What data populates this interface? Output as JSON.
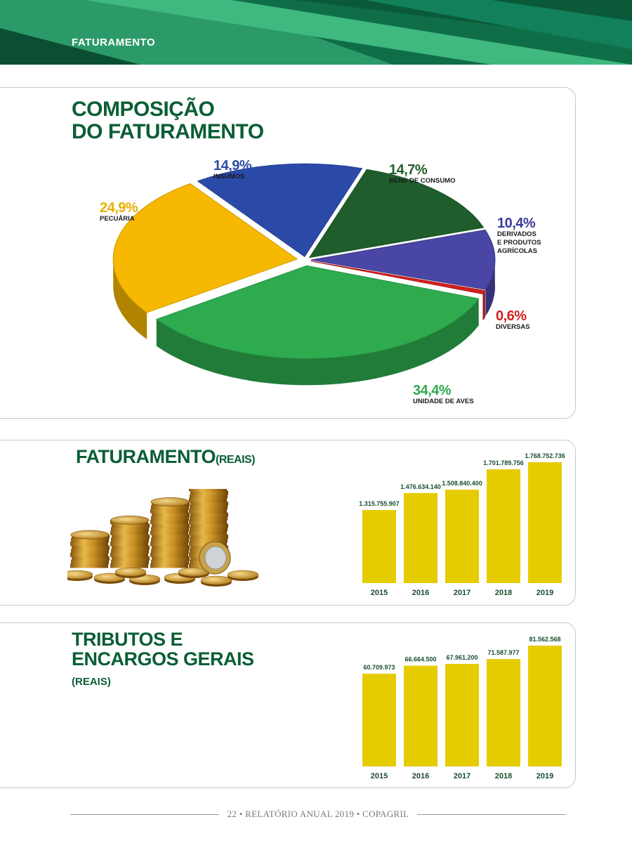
{
  "header": {
    "section": "FATURAMENTO"
  },
  "pie": {
    "title_line1": "COMPOSIÇÃO",
    "title_line2": "DO FATURAMENTO"
  },
  "revenue": {
    "title": "FATURAMENTO",
    "unit": "(REAIS)"
  },
  "taxes": {
    "title_line1": "TRIBUTOS E",
    "title_line2": "ENCARGOS GERAIS",
    "unit": "(REAIS)"
  },
  "footer": {
    "text": "22 • RELATÓRIO ANUAL 2019 • COPAGRIL"
  },
  "chart_data": [
    {
      "type": "pie",
      "title": "COMPOSIÇÃO DO FATURAMENTO",
      "slices": [
        {
          "label": "INSUMOS",
          "pct_label": "14,9%",
          "value": 14.9,
          "color": "#2b4aa8"
        },
        {
          "label": "BENS DE CONSUMO",
          "pct_label": "14,7%",
          "value": 14.7,
          "color": "#1f5e2c"
        },
        {
          "label": "DERIVADOS\nE PRODUTOS\nAGRÍCOLAS",
          "pct_label": "10,4%",
          "value": 10.4,
          "color": "#4a46a6"
        },
        {
          "label": "DIVERSAS",
          "pct_label": "0,6%",
          "value": 0.6,
          "color": "#d32020"
        },
        {
          "label": "UNIDADE DE AVES",
          "pct_label": "34,4%",
          "value": 34.4,
          "color": "#2eab4f"
        },
        {
          "label": "PECUÁRIA",
          "pct_label": "24,9%",
          "value": 24.9,
          "color": "#f6b800"
        }
      ]
    },
    {
      "type": "bar",
      "title": "FATURAMENTO (REAIS)",
      "categories": [
        "2015",
        "2016",
        "2017",
        "2018",
        "2019"
      ],
      "values": [
        1315755907,
        1476634140,
        1508840400,
        1701789756,
        1768752736
      ],
      "value_labels": [
        "1.315.755.907",
        "1.476.634.140",
        "1.508.840.400",
        "1.701.789.756",
        "1.768.752.736"
      ],
      "color": "#e5cc00"
    },
    {
      "type": "bar",
      "title": "TRIBUTOS E ENCARGOS GERAIS (REAIS)",
      "categories": [
        "2015",
        "2016",
        "2017",
        "2018",
        "2019"
      ],
      "values": [
        60709973,
        66664500,
        67961200,
        71587977,
        81562568
      ],
      "value_labels": [
        "60.709.973",
        "66.664.500",
        "67.961.200",
        "71.587.977",
        "81.562.568"
      ],
      "color": "#e5cc00"
    }
  ]
}
